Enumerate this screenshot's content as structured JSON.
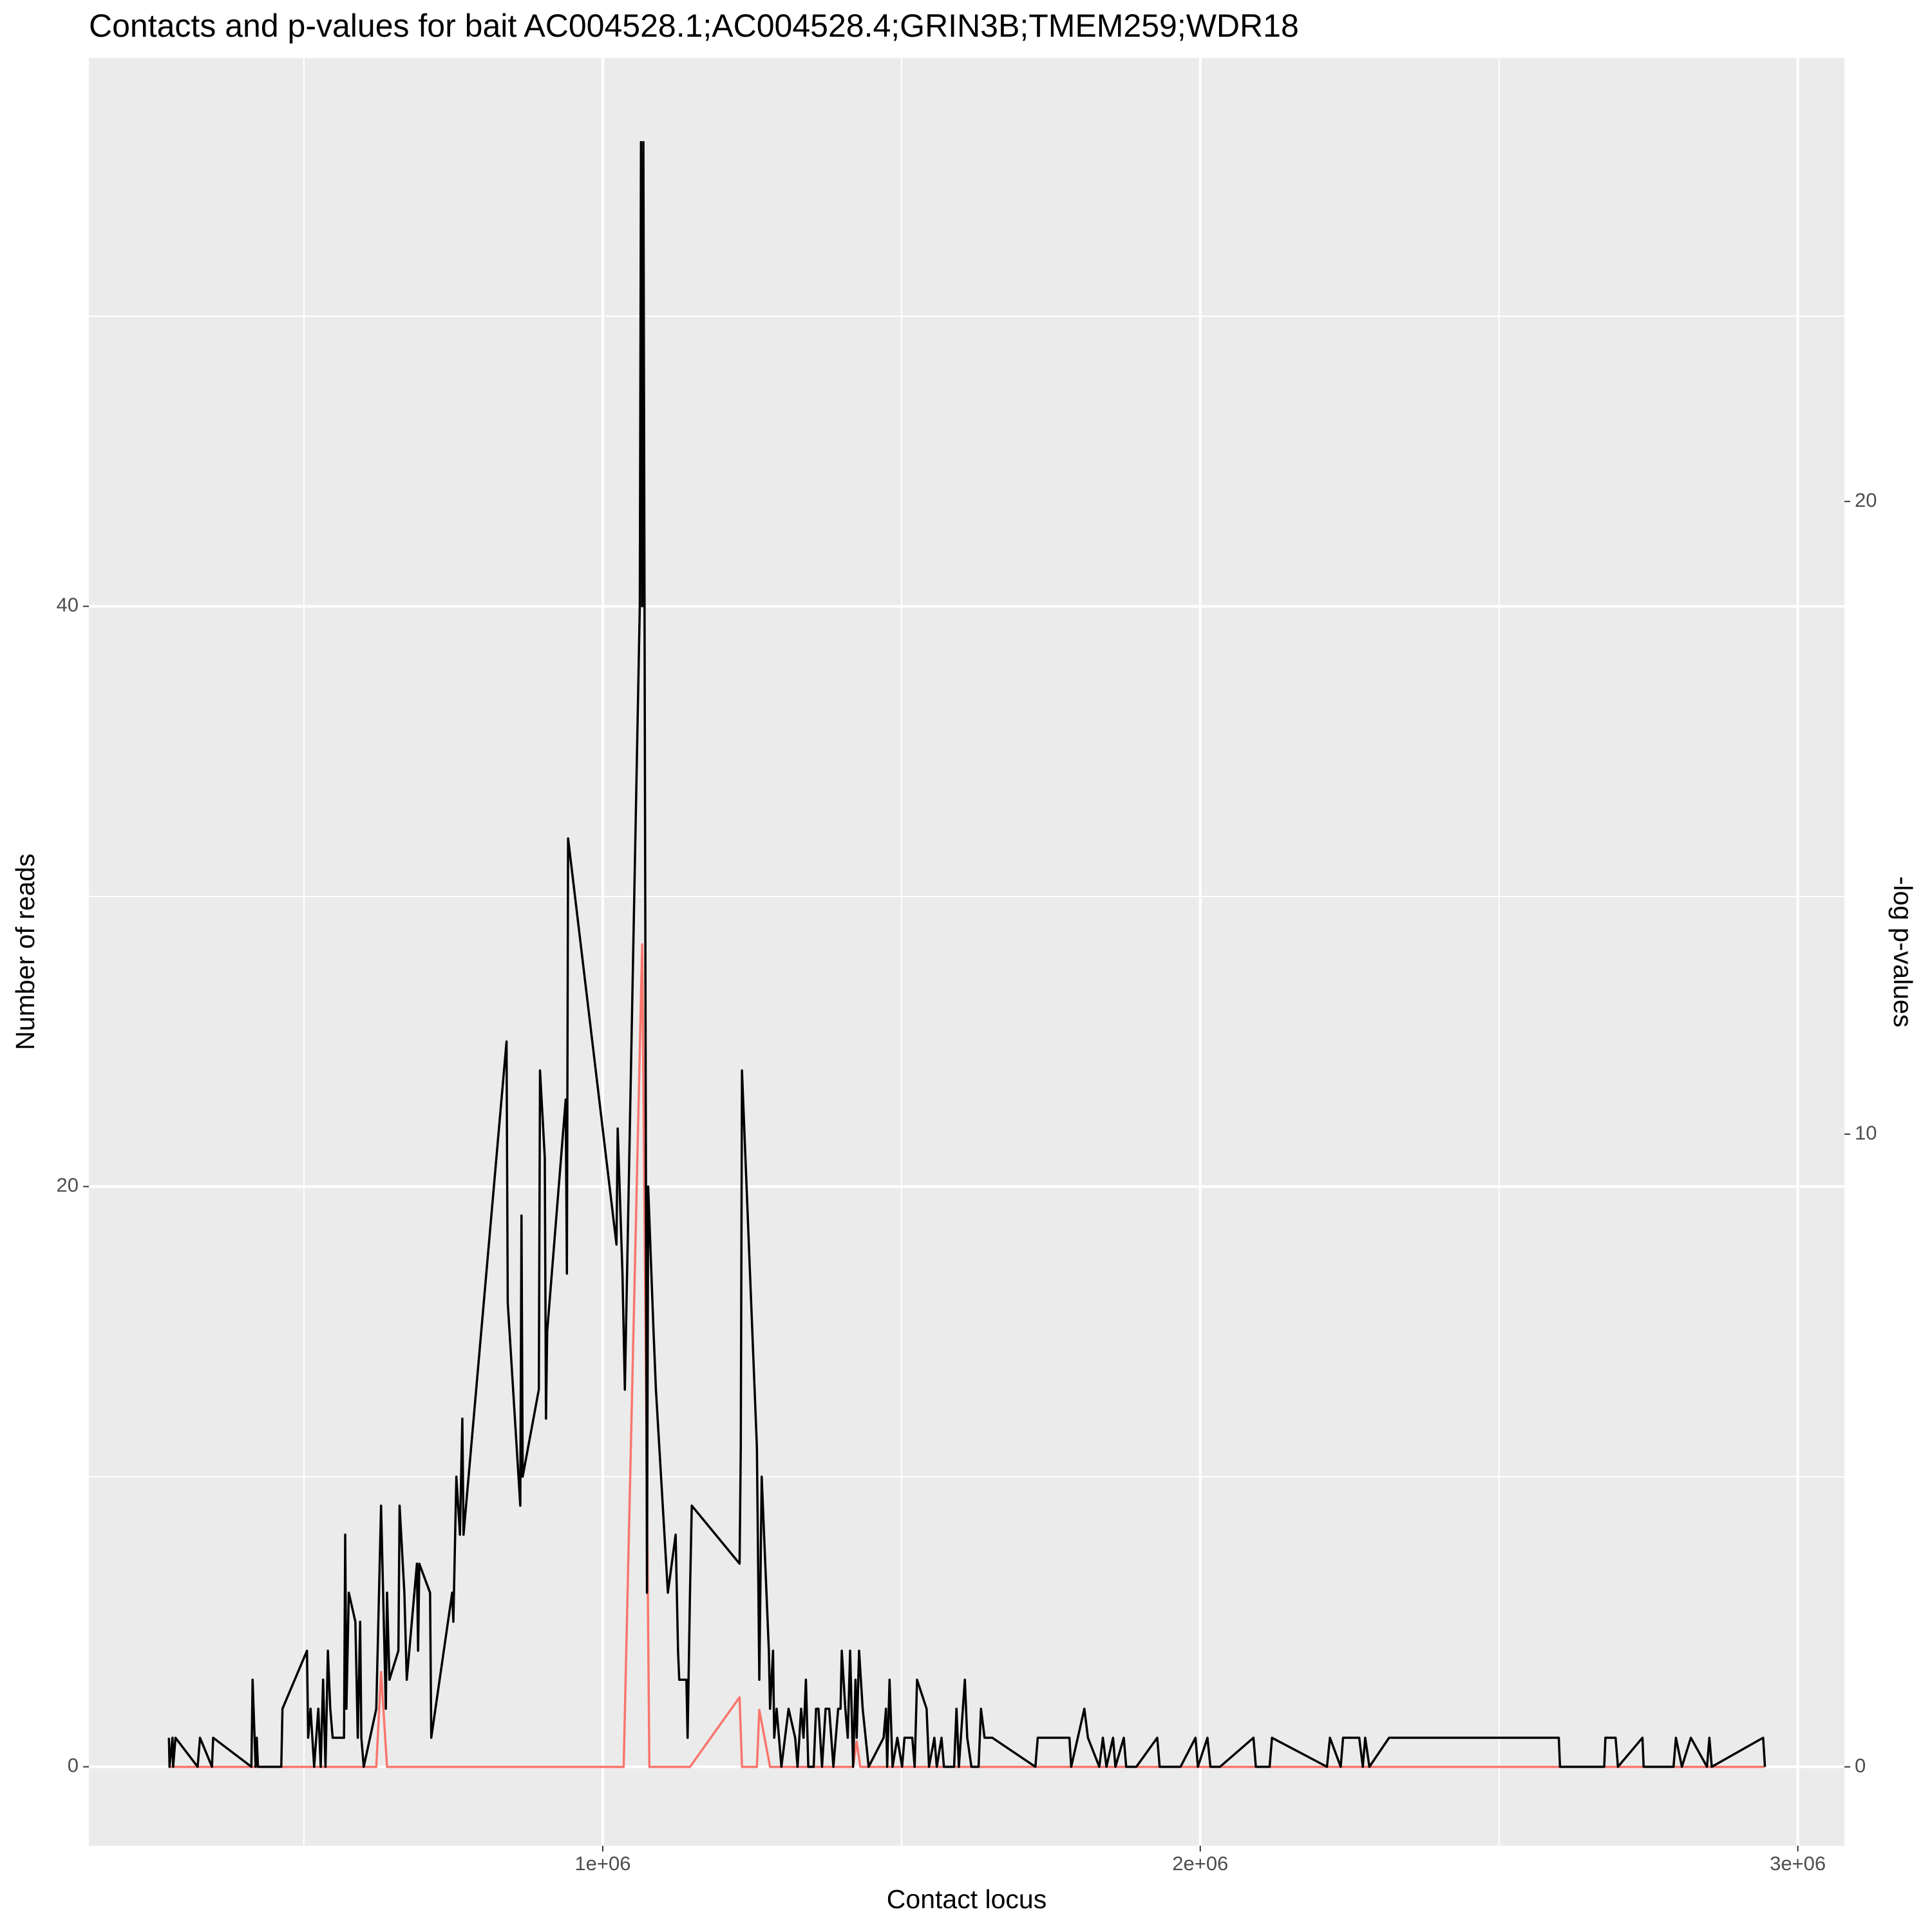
{
  "chart_data": {
    "type": "line",
    "title": "Contacts and p-values for bait AC004528.1;AC004528.4;GRIN3B;TMEM259;WDR18",
    "x_label": "Contact locus",
    "y_label": "Number of reads",
    "y2_label": "-log p-values",
    "xlim": [
      140000,
      3078000
    ],
    "ylim": [
      -2.72,
      58.9
    ],
    "y2lim": [
      -1.246,
      27.01
    ],
    "xticks": [
      {
        "value": 1000000,
        "label": "1e+06"
      },
      {
        "value": 2000000,
        "label": "2e+06"
      },
      {
        "value": 3000000,
        "label": "3e+06"
      }
    ],
    "yticks": [
      0,
      20,
      40
    ],
    "y2ticks": [
      0,
      10,
      20
    ],
    "x_minor_gridlines": [
      500000,
      1500000,
      2500000
    ],
    "y_minor_gridlines": [
      10,
      30,
      50
    ],
    "grid": true,
    "series": [
      {
        "color": "#000000",
        "x": [
          274000,
          275000,
          280000,
          281000,
          285000,
          322000,
          326000,
          346000,
          348000,
          412000,
          414000,
          419000,
          421000,
          423000,
          462000,
          464000,
          505000,
          507000,
          511000,
          517000,
          524000,
          528000,
          532000,
          536000,
          540000,
          544000,
          548000,
          567000,
          569000,
          571000,
          575000,
          586000,
          590000,
          594000,
          596000,
          600000,
          621000,
          629000,
          637000,
          639000,
          643000,
          658000,
          660000,
          668000,
          672000,
          689000,
          691000,
          693000,
          711000,
          713000,
          748000,
          750000,
          755000,
          761000,
          765000,
          767000,
          839000,
          841000,
          862000,
          864000,
          866000,
          893000,
          895000,
          903000,
          905000,
          907000,
          938000,
          940000,
          942000,
          1023000,
          1025000,
          1033000,
          1037000,
          1062000,
          1064000,
          1066000,
          1068000,
          1074000,
          1076000,
          1085000,
          1089000,
          1109000,
          1122000,
          1126000,
          1128000,
          1140000,
          1142000,
          1146000,
          1149000,
          1229000,
          1231000,
          1233000,
          1258000,
          1262000,
          1266000,
          1278000,
          1280000,
          1285000,
          1287000,
          1291000,
          1299000,
          1311000,
          1322000,
          1326000,
          1332000,
          1336000,
          1340000,
          1344000,
          1353000,
          1357000,
          1361000,
          1367000,
          1373000,
          1379000,
          1386000,
          1394000,
          1398000,
          1400000,
          1406000,
          1410000,
          1414000,
          1419000,
          1423000,
          1425000,
          1429000,
          1435000,
          1445000,
          1470000,
          1474000,
          1476000,
          1480000,
          1485000,
          1493000,
          1501000,
          1505000,
          1518000,
          1522000,
          1526000,
          1542000,
          1546000,
          1555000,
          1559000,
          1567000,
          1571000,
          1588000,
          1592000,
          1596000,
          1606000,
          1610000,
          1617000,
          1629000,
          1633000,
          1639000,
          1652000,
          1724000,
          1728000,
          1781000,
          1784000,
          1806000,
          1812000,
          1831000,
          1837000,
          1843000,
          1854000,
          1858000,
          1872000,
          1876000,
          1893000,
          1928000,
          1932000,
          1967000,
          1992000,
          1996000,
          2012000,
          2017000,
          2033000,
          2089000,
          2093000,
          2116000,
          2120000,
          2212000,
          2217000,
          2235000,
          2239000,
          2266000,
          2272000,
          2276000,
          2283000,
          2316000,
          2320000,
          2600000,
          2602000,
          2676000,
          2678000,
          2695000,
          2699000,
          2740000,
          2742000,
          2792000,
          2796000,
          2806000,
          2821000,
          2848000,
          2852000,
          2856000,
          2942000,
          2945000
        ],
        "values": [
          1,
          0,
          1,
          0,
          1,
          0,
          1,
          0,
          1,
          0,
          3,
          0,
          1,
          0,
          0,
          2,
          4,
          1,
          2,
          0,
          2,
          0,
          3,
          0,
          4,
          2,
          1,
          1,
          8,
          2,
          6,
          5,
          1,
          5,
          1,
          0,
          2,
          9,
          2,
          6,
          3,
          4,
          9,
          6,
          3,
          7,
          4,
          7,
          6,
          1,
          6,
          5,
          10,
          8,
          12,
          8,
          25,
          16,
          9,
          19,
          10,
          13,
          24,
          21,
          12,
          15,
          23,
          17,
          32,
          18,
          22,
          17,
          13,
          40,
          56,
          40,
          56,
          6,
          20,
          15,
          13,
          6,
          8,
          4,
          3,
          3,
          1,
          6,
          9,
          7,
          11,
          24,
          11,
          3,
          10,
          4,
          2,
          4,
          1,
          2,
          0,
          2,
          1,
          0,
          2,
          1,
          3,
          0,
          0,
          2,
          2,
          0,
          2,
          2,
          0,
          2,
          2,
          4,
          2,
          1,
          4,
          0,
          3,
          1,
          4,
          2,
          0,
          1,
          2,
          0,
          3,
          0,
          1,
          0,
          1,
          1,
          0,
          3,
          2,
          0,
          1,
          0,
          1,
          0,
          0,
          2,
          0,
          3,
          1,
          0,
          0,
          2,
          1,
          1,
          0,
          1,
          1,
          0,
          2,
          1,
          0,
          1,
          0,
          1,
          0,
          1,
          0,
          0,
          1,
          0,
          0,
          1,
          0,
          1,
          0,
          0,
          1,
          0,
          0,
          1,
          0,
          1,
          0,
          1,
          1,
          0,
          1,
          0,
          1,
          1,
          1,
          0,
          0,
          1,
          1,
          0,
          1,
          0,
          0,
          1,
          0,
          1,
          0,
          1,
          0,
          1,
          0
        ]
      },
      {
        "color": "#f8766d",
        "axis": "y2",
        "x": [
          274000,
          621000,
          629000,
          639000,
          1035000,
          1066000,
          1078000,
          1146000,
          1229000,
          1233000,
          1258000,
          1262000,
          1280000,
          1419000,
          1425000,
          1431000,
          2945000
        ],
        "values": [
          0,
          0,
          1.5,
          0,
          0,
          13,
          0,
          0,
          1.1,
          0,
          0,
          0.9,
          0,
          0,
          0.4,
          0,
          0
        ]
      }
    ]
  }
}
